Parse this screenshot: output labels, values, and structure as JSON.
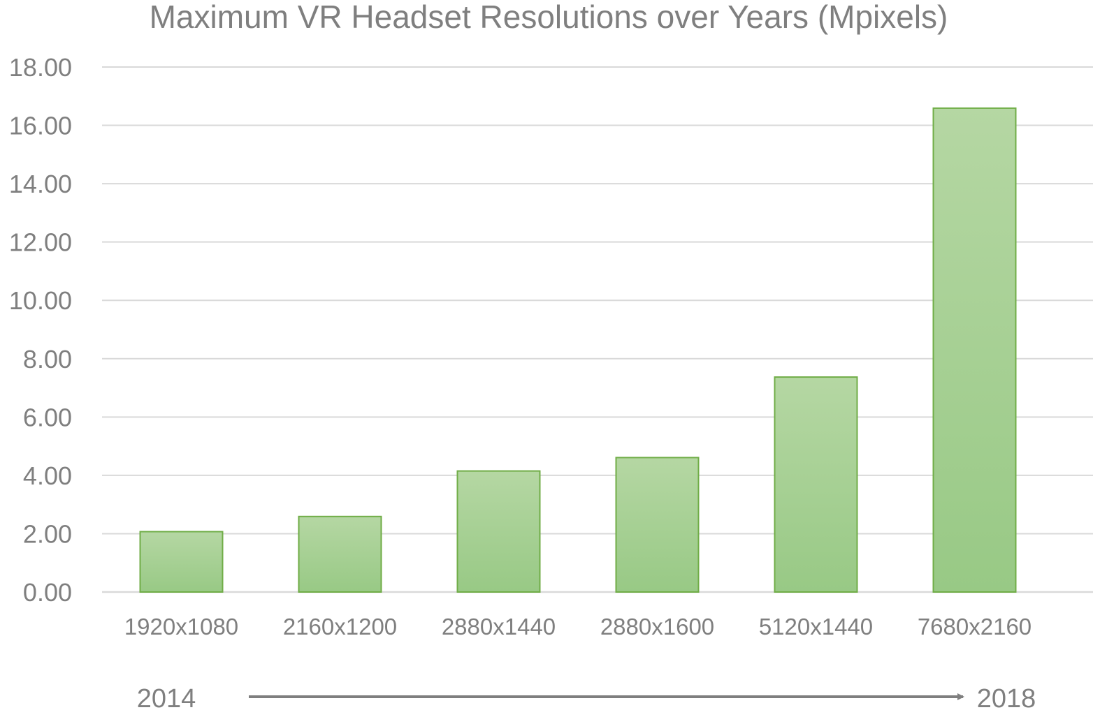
{
  "chart_data": {
    "type": "bar",
    "title": "Maximum VR Headset Resolutions over Years (Mpixels)",
    "xlabel": "",
    "ylabel": "",
    "categories": [
      "1920x1080",
      "2160x1200",
      "2880x1440",
      "2880x1600",
      "5120x1440",
      "7680x2160"
    ],
    "values": [
      2.07,
      2.59,
      4.15,
      4.61,
      7.37,
      16.59
    ],
    "ylim": [
      0,
      18
    ],
    "yticks": [
      "0.00",
      "2.00",
      "4.00",
      "6.00",
      "8.00",
      "10.00",
      "12.00",
      "14.00",
      "16.00",
      "18.00"
    ],
    "grid": true,
    "bar_fill_top": "#b5d7a3",
    "bar_fill_bottom": "#98c985",
    "bar_stroke": "#70ad47",
    "text_color": "#7f7f7f",
    "timeline": {
      "start_label": "2014",
      "end_label": "2018"
    }
  }
}
